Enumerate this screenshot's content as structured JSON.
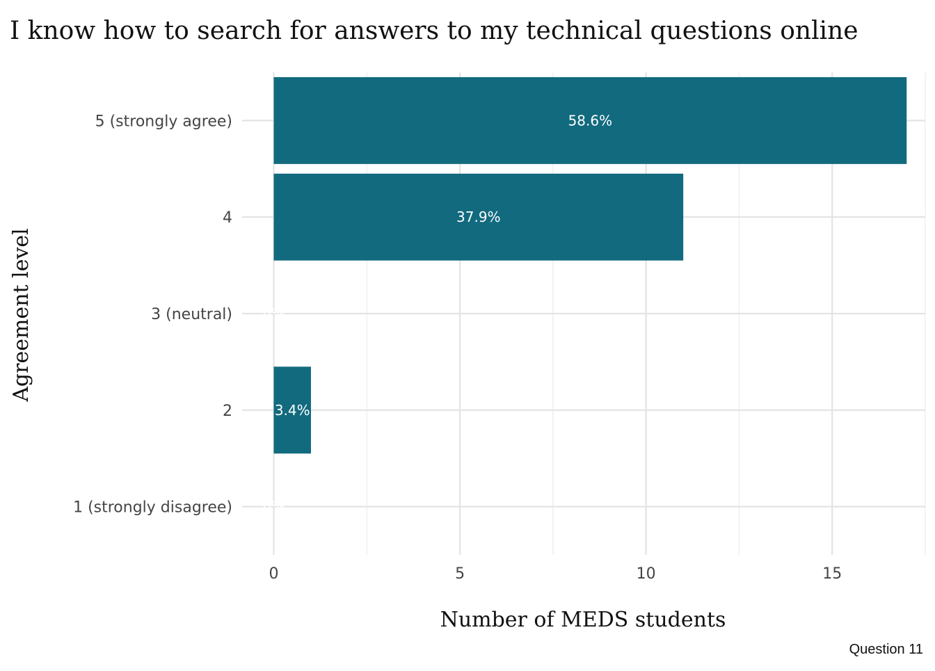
{
  "chart_data": {
    "type": "bar",
    "orientation": "horizontal",
    "title": "I know how to search for answers to my technical questions online",
    "xlabel": "Number of MEDS students",
    "ylabel": "Agreement level",
    "caption": "Question 11",
    "categories": [
      "5 (strongly agree)",
      "4",
      "3 (neutral)",
      "2",
      "1 (strongly disagree)"
    ],
    "values": [
      17,
      11,
      0,
      1,
      0
    ],
    "percent_labels": [
      "58.6%",
      "37.9%",
      "0%",
      "3.4%",
      "0%"
    ],
    "xlim": [
      -0.85,
      17.5
    ],
    "x_ticks": [
      0,
      5,
      10,
      15
    ],
    "x_tick_labels": [
      "0",
      "5",
      "10",
      "15"
    ],
    "grid": true,
    "legend": "none",
    "bar_color": "#126a7e"
  }
}
